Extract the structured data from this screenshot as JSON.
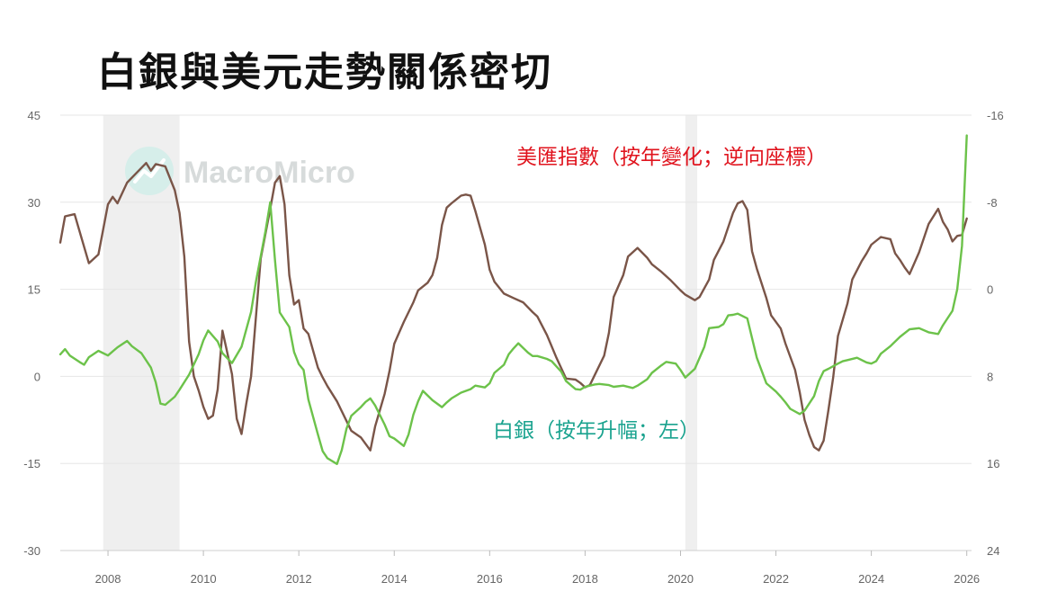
{
  "title": "白銀與美元走勢關係密切",
  "watermark": "MacroMicro",
  "chart_data": {
    "type": "line",
    "title": "白銀與美元走勢關係密切",
    "x_range": [
      2007.0,
      2026.1
    ],
    "y_left": {
      "ticks": [
        45,
        30,
        15,
        0,
        -15,
        -30
      ],
      "range": [
        -30,
        45
      ]
    },
    "y_right": {
      "ticks": [
        -16,
        -8,
        0,
        8,
        16,
        24
      ],
      "range": [
        -16,
        24
      ],
      "reversed": true
    },
    "x_ticks": [
      "2008",
      "2010",
      "2012",
      "2014",
      "2016",
      "2018",
      "2020",
      "2022",
      "2024",
      "2026"
    ],
    "grid": true,
    "shaded_periods": [
      [
        2007.9,
        2009.5
      ],
      [
        2020.1,
        2020.35
      ]
    ],
    "series": [
      {
        "name": "美匯指數（按年變化；逆向座標）",
        "axis": "right",
        "color": "#7a5548",
        "label_color": "#e0141e",
        "points": [
          [
            2007.0,
            -4.3
          ],
          [
            2007.1,
            -6.7
          ],
          [
            2007.3,
            -6.9
          ],
          [
            2007.6,
            -2.4
          ],
          [
            2007.8,
            -3.2
          ],
          [
            2008.0,
            -7.8
          ],
          [
            2008.1,
            -8.5
          ],
          [
            2008.2,
            -7.9
          ],
          [
            2008.4,
            -9.8
          ],
          [
            2008.6,
            -10.7
          ],
          [
            2008.8,
            -11.6
          ],
          [
            2008.9,
            -10.9
          ],
          [
            2009.0,
            -11.5
          ],
          [
            2009.2,
            -11.3
          ],
          [
            2009.4,
            -9.1
          ],
          [
            2009.5,
            -7.0
          ],
          [
            2009.6,
            -3.0
          ],
          [
            2009.7,
            4.8
          ],
          [
            2009.8,
            8.0
          ],
          [
            2009.9,
            9.3
          ],
          [
            2010.0,
            10.8
          ],
          [
            2010.1,
            11.9
          ],
          [
            2010.2,
            11.6
          ],
          [
            2010.3,
            9.2
          ],
          [
            2010.4,
            3.8
          ],
          [
            2010.6,
            7.8
          ],
          [
            2010.7,
            11.9
          ],
          [
            2010.8,
            13.3
          ],
          [
            2010.9,
            10.5
          ],
          [
            2011.0,
            8.0
          ],
          [
            2011.2,
            -2.8
          ],
          [
            2011.4,
            -7.4
          ],
          [
            2011.5,
            -9.8
          ],
          [
            2011.6,
            -10.4
          ],
          [
            2011.7,
            -7.8
          ],
          [
            2011.8,
            -1.3
          ],
          [
            2011.9,
            1.4
          ],
          [
            2012.0,
            1.0
          ],
          [
            2012.1,
            3.6
          ],
          [
            2012.2,
            4.1
          ],
          [
            2012.4,
            7.2
          ],
          [
            2012.5,
            8.1
          ],
          [
            2012.6,
            8.9
          ],
          [
            2012.8,
            10.3
          ],
          [
            2012.9,
            11.2
          ],
          [
            2013.1,
            13.0
          ],
          [
            2013.3,
            13.6
          ],
          [
            2013.5,
            14.8
          ],
          [
            2013.6,
            12.6
          ],
          [
            2013.8,
            9.6
          ],
          [
            2013.9,
            7.5
          ],
          [
            2014.0,
            5.0
          ],
          [
            2014.2,
            3.0
          ],
          [
            2014.4,
            1.2
          ],
          [
            2014.5,
            0.1
          ],
          [
            2014.7,
            -0.6
          ],
          [
            2014.8,
            -1.3
          ],
          [
            2014.9,
            -2.9
          ],
          [
            2015.0,
            -5.9
          ],
          [
            2015.1,
            -7.5
          ],
          [
            2015.2,
            -7.9
          ],
          [
            2015.4,
            -8.6
          ],
          [
            2015.5,
            -8.7
          ],
          [
            2015.6,
            -8.6
          ],
          [
            2015.7,
            -7.2
          ],
          [
            2015.9,
            -4.1
          ],
          [
            2016.0,
            -1.8
          ],
          [
            2016.1,
            -0.7
          ],
          [
            2016.3,
            0.4
          ],
          [
            2016.5,
            0.8
          ],
          [
            2016.7,
            1.2
          ],
          [
            2016.9,
            2.1
          ],
          [
            2017.0,
            2.5
          ],
          [
            2017.2,
            4.2
          ],
          [
            2017.4,
            6.3
          ],
          [
            2017.6,
            8.2
          ],
          [
            2017.8,
            8.3
          ],
          [
            2017.9,
            8.6
          ],
          [
            2018.0,
            9.0
          ],
          [
            2018.1,
            8.8
          ],
          [
            2018.2,
            7.9
          ],
          [
            2018.4,
            6.1
          ],
          [
            2018.5,
            4.0
          ],
          [
            2018.6,
            0.7
          ],
          [
            2018.8,
            -1.3
          ],
          [
            2018.9,
            -3.0
          ],
          [
            2019.1,
            -3.8
          ],
          [
            2019.3,
            -2.9
          ],
          [
            2019.4,
            -2.3
          ],
          [
            2019.6,
            -1.6
          ],
          [
            2019.8,
            -0.8
          ],
          [
            2020.0,
            0.1
          ],
          [
            2020.1,
            0.5
          ],
          [
            2020.3,
            1.0
          ],
          [
            2020.4,
            0.7
          ],
          [
            2020.6,
            -0.9
          ],
          [
            2020.7,
            -2.7
          ],
          [
            2020.9,
            -4.4
          ],
          [
            2021.0,
            -5.7
          ],
          [
            2021.1,
            -7.0
          ],
          [
            2021.2,
            -7.9
          ],
          [
            2021.3,
            -8.1
          ],
          [
            2021.4,
            -7.3
          ],
          [
            2021.5,
            -3.5
          ],
          [
            2021.6,
            -1.9
          ],
          [
            2021.8,
            0.8
          ],
          [
            2021.9,
            2.4
          ],
          [
            2022.1,
            3.6
          ],
          [
            2022.2,
            5.0
          ],
          [
            2022.4,
            7.4
          ],
          [
            2022.5,
            9.5
          ],
          [
            2022.6,
            12.0
          ],
          [
            2022.7,
            13.4
          ],
          [
            2022.8,
            14.5
          ],
          [
            2022.9,
            14.8
          ],
          [
            2023.0,
            13.9
          ],
          [
            2023.1,
            11.1
          ],
          [
            2023.2,
            8.1
          ],
          [
            2023.3,
            4.3
          ],
          [
            2023.5,
            1.3
          ],
          [
            2023.6,
            -0.9
          ],
          [
            2023.8,
            -2.6
          ],
          [
            2023.9,
            -3.3
          ],
          [
            2024.0,
            -4.1
          ],
          [
            2024.2,
            -4.8
          ],
          [
            2024.4,
            -4.6
          ],
          [
            2024.5,
            -3.3
          ],
          [
            2024.6,
            -2.7
          ],
          [
            2024.7,
            -2.0
          ],
          [
            2024.8,
            -1.4
          ],
          [
            2025.0,
            -3.4
          ],
          [
            2025.2,
            -6.0
          ],
          [
            2025.4,
            -7.4
          ],
          [
            2025.5,
            -6.2
          ],
          [
            2025.6,
            -5.5
          ],
          [
            2025.7,
            -4.4
          ],
          [
            2025.8,
            -4.9
          ],
          [
            2025.9,
            -5.0
          ],
          [
            2026.0,
            -6.5
          ]
        ]
      },
      {
        "name": "白銀（按年升幅；左）",
        "axis": "left",
        "color": "#6cc24a",
        "label_color": "#1ba38f",
        "points": [
          [
            2007.0,
            3.8
          ],
          [
            2007.1,
            4.7
          ],
          [
            2007.2,
            3.6
          ],
          [
            2007.4,
            2.5
          ],
          [
            2007.5,
            2.0
          ],
          [
            2007.6,
            3.3
          ],
          [
            2007.8,
            4.4
          ],
          [
            2008.0,
            3.6
          ],
          [
            2008.2,
            5.0
          ],
          [
            2008.4,
            6.1
          ],
          [
            2008.5,
            5.2
          ],
          [
            2008.7,
            4.0
          ],
          [
            2008.9,
            1.5
          ],
          [
            2009.0,
            -1.0
          ],
          [
            2009.1,
            -4.7
          ],
          [
            2009.2,
            -4.9
          ],
          [
            2009.4,
            -3.5
          ],
          [
            2009.5,
            -2.3
          ],
          [
            2009.7,
            0.3
          ],
          [
            2009.9,
            3.8
          ],
          [
            2010.0,
            6.2
          ],
          [
            2010.1,
            7.9
          ],
          [
            2010.3,
            6.0
          ],
          [
            2010.4,
            4.0
          ],
          [
            2010.6,
            2.3
          ],
          [
            2010.8,
            5.1
          ],
          [
            2011.0,
            11.1
          ],
          [
            2011.1,
            16.3
          ],
          [
            2011.3,
            25.0
          ],
          [
            2011.4,
            30.0
          ],
          [
            2011.5,
            20.0
          ],
          [
            2011.6,
            11.0
          ],
          [
            2011.8,
            8.5
          ],
          [
            2011.9,
            4.2
          ],
          [
            2012.0,
            2.1
          ],
          [
            2012.1,
            1.1
          ],
          [
            2012.2,
            -4.0
          ],
          [
            2012.4,
            -10.0
          ],
          [
            2012.5,
            -12.9
          ],
          [
            2012.6,
            -14.1
          ],
          [
            2012.8,
            -15.1
          ],
          [
            2012.9,
            -12.7
          ],
          [
            2013.0,
            -9.0
          ],
          [
            2013.1,
            -6.8
          ],
          [
            2013.3,
            -5.3
          ],
          [
            2013.4,
            -4.4
          ],
          [
            2013.5,
            -3.8
          ],
          [
            2013.6,
            -5.0
          ],
          [
            2013.8,
            -8.3
          ],
          [
            2013.9,
            -10.3
          ],
          [
            2014.0,
            -10.7
          ],
          [
            2014.2,
            -12.0
          ],
          [
            2014.3,
            -10.0
          ],
          [
            2014.4,
            -6.6
          ],
          [
            2014.5,
            -4.3
          ],
          [
            2014.6,
            -2.5
          ],
          [
            2014.8,
            -4.1
          ],
          [
            2015.0,
            -5.3
          ],
          [
            2015.1,
            -4.5
          ],
          [
            2015.2,
            -3.8
          ],
          [
            2015.4,
            -2.8
          ],
          [
            2015.6,
            -2.2
          ],
          [
            2015.7,
            -1.6
          ],
          [
            2015.9,
            -1.9
          ],
          [
            2016.0,
            -1.2
          ],
          [
            2016.1,
            0.6
          ],
          [
            2016.3,
            2.0
          ],
          [
            2016.4,
            3.8
          ],
          [
            2016.5,
            4.8
          ],
          [
            2016.6,
            5.7
          ],
          [
            2016.8,
            4.1
          ],
          [
            2016.9,
            3.5
          ],
          [
            2017.0,
            3.5
          ],
          [
            2017.2,
            3.0
          ],
          [
            2017.3,
            2.6
          ],
          [
            2017.5,
            0.8
          ],
          [
            2017.6,
            -0.8
          ],
          [
            2017.8,
            -2.2
          ],
          [
            2017.9,
            -2.3
          ],
          [
            2018.0,
            -1.8
          ],
          [
            2018.2,
            -1.4
          ],
          [
            2018.3,
            -1.3
          ],
          [
            2018.5,
            -1.5
          ],
          [
            2018.6,
            -1.8
          ],
          [
            2018.8,
            -1.6
          ],
          [
            2019.0,
            -2.0
          ],
          [
            2019.1,
            -1.6
          ],
          [
            2019.3,
            -0.5
          ],
          [
            2019.4,
            0.6
          ],
          [
            2019.6,
            1.9
          ],
          [
            2019.7,
            2.5
          ],
          [
            2019.9,
            2.2
          ],
          [
            2020.0,
            1.1
          ],
          [
            2020.1,
            -0.2
          ],
          [
            2020.3,
            1.3
          ],
          [
            2020.5,
            5.1
          ],
          [
            2020.6,
            8.3
          ],
          [
            2020.8,
            8.5
          ],
          [
            2020.9,
            9.0
          ],
          [
            2021.0,
            10.5
          ],
          [
            2021.1,
            10.6
          ],
          [
            2021.2,
            10.8
          ],
          [
            2021.4,
            10.0
          ],
          [
            2021.6,
            3.2
          ],
          [
            2021.8,
            -1.2
          ],
          [
            2022.0,
            -2.6
          ],
          [
            2022.1,
            -3.5
          ],
          [
            2022.2,
            -4.5
          ],
          [
            2022.3,
            -5.6
          ],
          [
            2022.5,
            -6.5
          ],
          [
            2022.6,
            -5.9
          ],
          [
            2022.8,
            -3.4
          ],
          [
            2022.9,
            -0.8
          ],
          [
            2023.0,
            0.9
          ],
          [
            2023.1,
            1.3
          ],
          [
            2023.3,
            2.2
          ],
          [
            2023.4,
            2.6
          ],
          [
            2023.5,
            2.8
          ],
          [
            2023.7,
            3.2
          ],
          [
            2023.9,
            2.4
          ],
          [
            2024.0,
            2.2
          ],
          [
            2024.1,
            2.6
          ],
          [
            2024.2,
            3.9
          ],
          [
            2024.4,
            5.2
          ],
          [
            2024.6,
            6.8
          ],
          [
            2024.8,
            8.1
          ],
          [
            2025.0,
            8.3
          ],
          [
            2025.2,
            7.6
          ],
          [
            2025.4,
            7.3
          ],
          [
            2025.5,
            8.8
          ],
          [
            2025.7,
            11.3
          ],
          [
            2025.8,
            15.0
          ],
          [
            2025.9,
            22.5
          ],
          [
            2026.0,
            41.5
          ]
        ]
      }
    ],
    "annotations": [
      {
        "text": "美匯指數（按年變化；逆向座標）",
        "series": 0
      },
      {
        "text": "白銀（按年升幅；左）",
        "series": 1
      }
    ]
  }
}
